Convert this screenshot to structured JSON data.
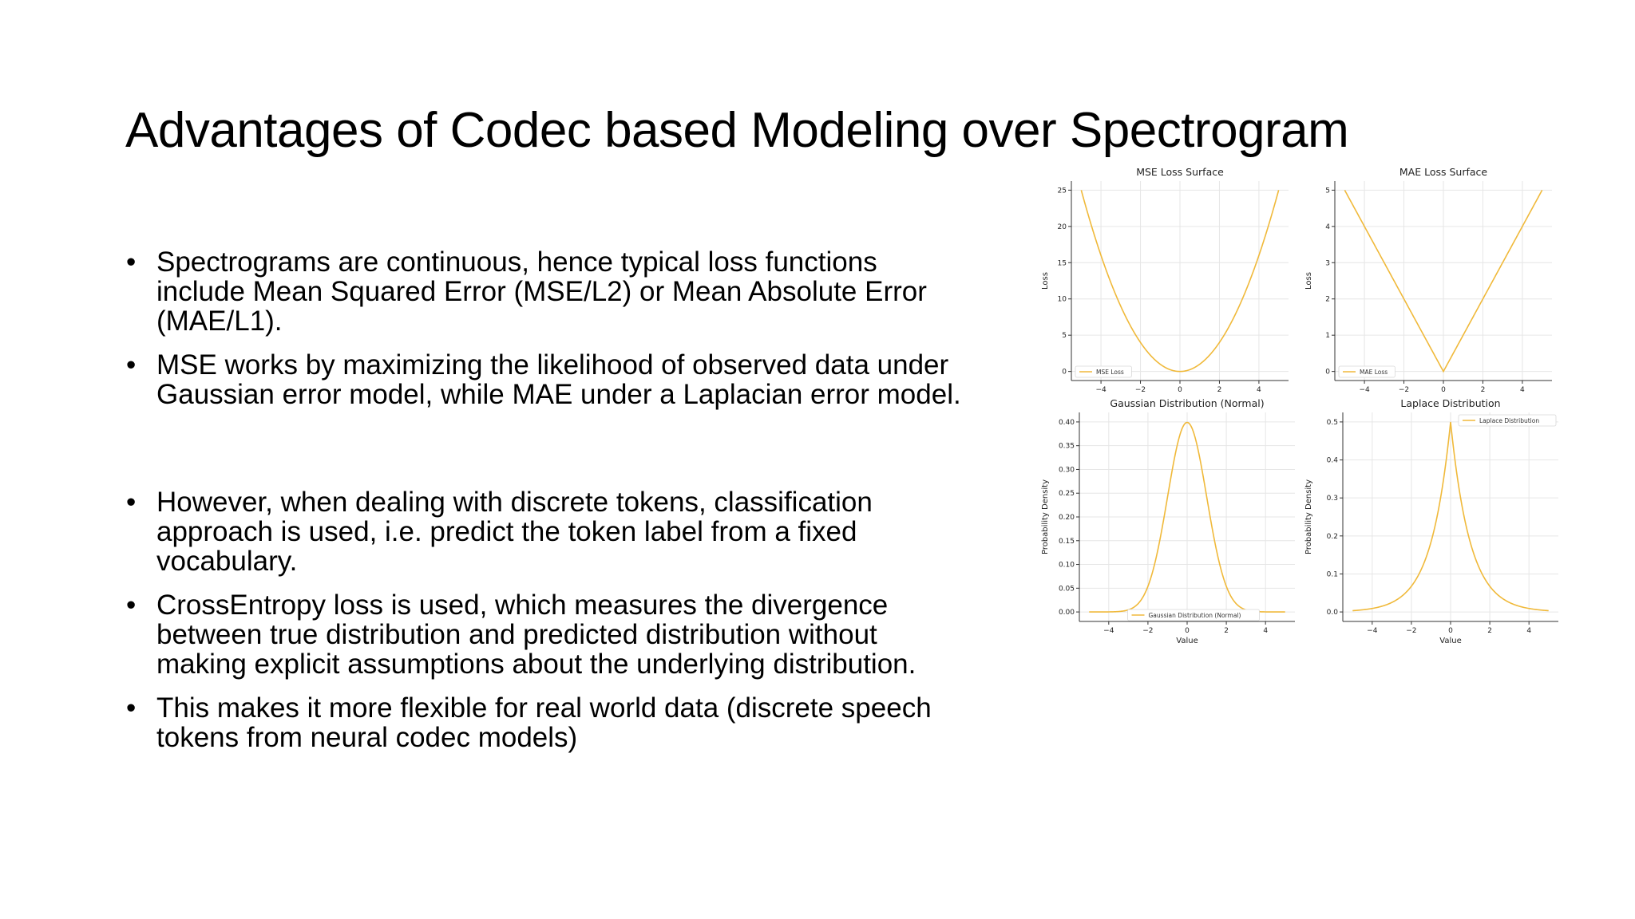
{
  "slide": {
    "title": "Advantages of Codec based Modeling over Spectrogram",
    "bullet_symbol": "•",
    "bullets": [
      "Spectrograms are continuous, hence typical loss functions include Mean Squared Error (MSE/L2) or Mean Absolute Error (MAE/L1).",
      "MSE works by maximizing the likelihood of observed data under Gaussian error model, while MAE under a Laplacian error model.",
      "However, when dealing with discrete tokens, classification approach is used, i.e. predict the token label from a fixed vocabulary.",
      "CrossEntropy loss is used, which measures the divergence between true distribution and predicted distribution without making explicit assumptions about the underlying distribution.",
      "This makes it more flexible for real world data (discrete speech tokens from neural codec models)"
    ]
  },
  "chart_data": [
    {
      "type": "line",
      "title": "MSE Loss Surface",
      "xlabel": "",
      "ylabel": "Loss",
      "function": "x^2",
      "x_range": [
        -5,
        5
      ],
      "xlim": [
        -5.5,
        5.5
      ],
      "ylim": [
        -1.25,
        26.25
      ],
      "xticks": [
        -4,
        -2,
        0,
        2,
        4
      ],
      "xtick_labels": [
        "−4",
        "−2",
        "0",
        "2",
        "4"
      ],
      "yticks": [
        0,
        5,
        10,
        15,
        20,
        25
      ],
      "ytick_labels": [
        "0",
        "5",
        "10",
        "15",
        "20",
        "25"
      ],
      "grid": true,
      "legend_position": "lower-left",
      "series": [
        {
          "name": "MSE Loss",
          "color": "#f0b93a"
        }
      ]
    },
    {
      "type": "line",
      "title": "MAE Loss Surface",
      "xlabel": "",
      "ylabel": "Loss",
      "function": "|x|",
      "x_range": [
        -5,
        5
      ],
      "xlim": [
        -5.5,
        5.5
      ],
      "ylim": [
        -0.25,
        5.25
      ],
      "xticks": [
        -4,
        -2,
        0,
        2,
        4
      ],
      "xtick_labels": [
        "−4",
        "−2",
        "0",
        "2",
        "4"
      ],
      "yticks": [
        0,
        1,
        2,
        3,
        4,
        5
      ],
      "ytick_labels": [
        "0",
        "1",
        "2",
        "3",
        "4",
        "5"
      ],
      "grid": true,
      "legend_position": "lower-left",
      "series": [
        {
          "name": "MAE Loss",
          "color": "#f0b93a"
        }
      ]
    },
    {
      "type": "line",
      "title": "Gaussian Distribution (Normal)",
      "xlabel": "Value",
      "ylabel": "Probability Density",
      "function": "gaussian",
      "mu": 0,
      "sigma": 1,
      "x_range": [
        -5,
        5
      ],
      "xlim": [
        -5.5,
        5.5
      ],
      "ylim": [
        -0.02,
        0.42
      ],
      "xticks": [
        -4,
        -2,
        0,
        2,
        4
      ],
      "xtick_labels": [
        "−4",
        "−2",
        "0",
        "2",
        "4"
      ],
      "yticks": [
        0,
        0.05,
        0.1,
        0.15,
        0.2,
        0.25,
        0.3,
        0.35,
        0.4
      ],
      "ytick_labels": [
        "0.00",
        "0.05",
        "0.10",
        "0.15",
        "0.20",
        "0.25",
        "0.30",
        "0.35",
        "0.40"
      ],
      "grid": true,
      "legend_position": "lower-center",
      "series": [
        {
          "name": "Gaussian Distribution (Normal)",
          "color": "#f0b93a"
        }
      ]
    },
    {
      "type": "line",
      "title": "Laplace Distribution",
      "xlabel": "Value",
      "ylabel": "Probability Density",
      "function": "laplace",
      "mu": 0,
      "b": 1,
      "x_range": [
        -5,
        5
      ],
      "xlim": [
        -5.5,
        5.5
      ],
      "ylim": [
        -0.025,
        0.525
      ],
      "xticks": [
        -4,
        -2,
        0,
        2,
        4
      ],
      "xtick_labels": [
        "−4",
        "−2",
        "0",
        "2",
        "4"
      ],
      "yticks": [
        0,
        0.1,
        0.2,
        0.3,
        0.4,
        0.5
      ],
      "ytick_labels": [
        "0.0",
        "0.1",
        "0.2",
        "0.3",
        "0.4",
        "0.5"
      ],
      "grid": true,
      "legend_position": "upper-right",
      "series": [
        {
          "name": "Laplace Distribution",
          "color": "#f0b93a"
        }
      ]
    }
  ]
}
